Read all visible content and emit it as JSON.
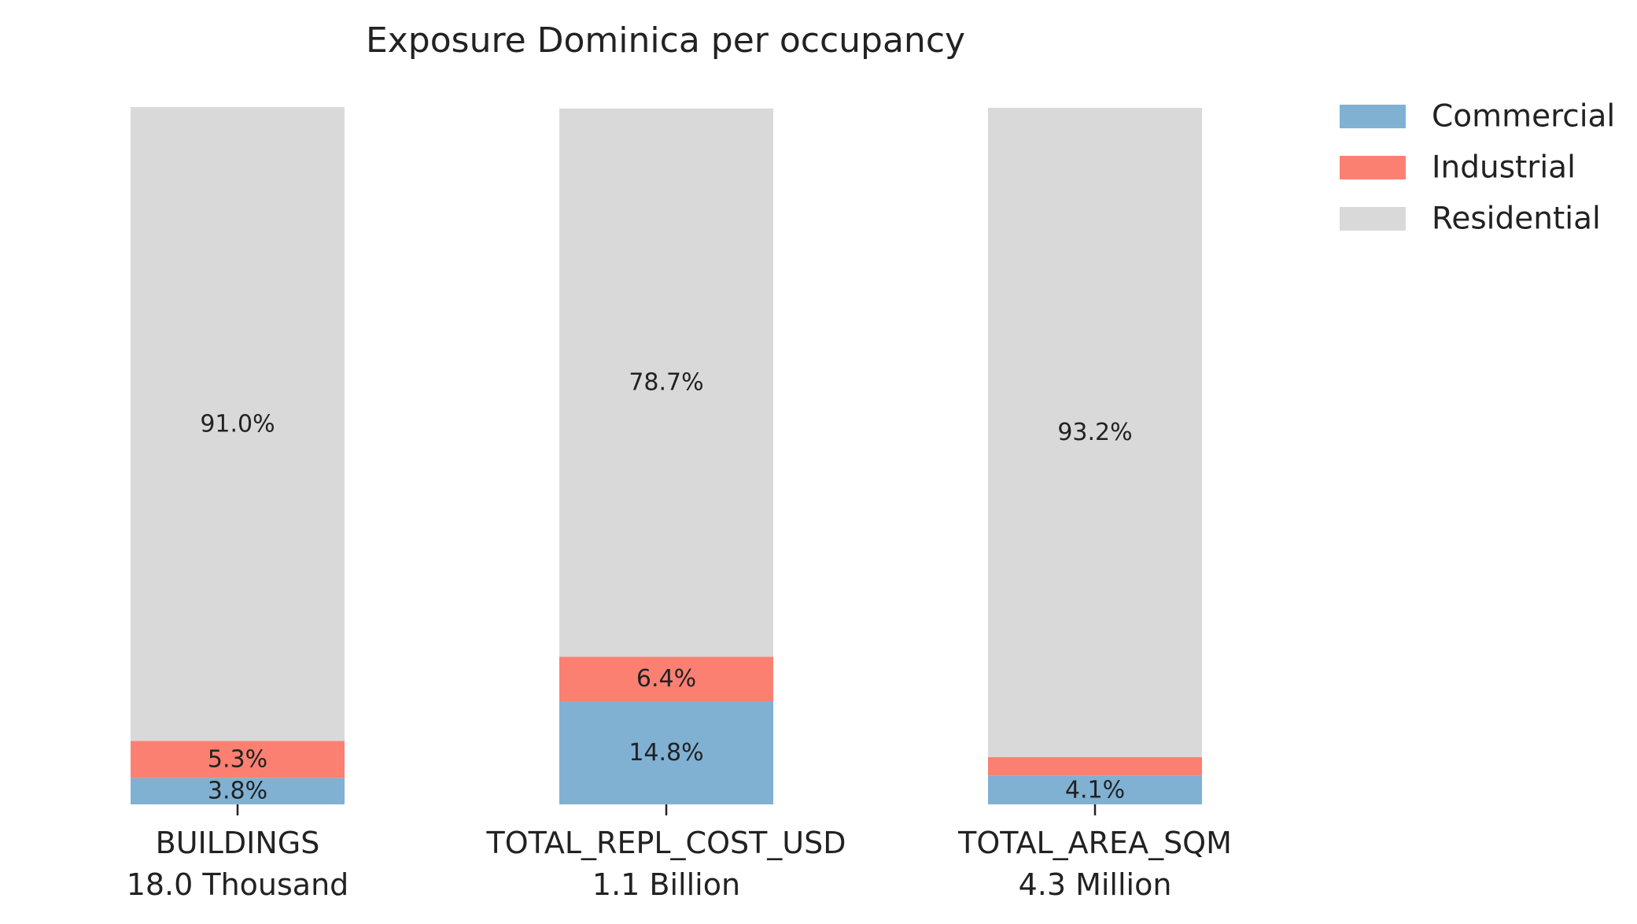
{
  "chart_data": {
    "type": "bar",
    "stacked": true,
    "title": "Exposure Dominica per occupancy",
    "xlabel": "",
    "ylabel": "",
    "ylim": [
      0,
      100
    ],
    "grid": false,
    "legend_position": "top-right",
    "categories": [
      {
        "name": "BUILDINGS",
        "total": "18.0 Thousand"
      },
      {
        "name": "TOTAL_REPL_COST_USD",
        "total": "1.1 Billion"
      },
      {
        "name": "TOTAL_AREA_SQM",
        "total": "4.3 Million"
      }
    ],
    "series": [
      {
        "name": "Commercial",
        "color": "#80b1d3",
        "values": [
          3.8,
          14.8,
          4.1
        ],
        "labels": [
          "3.8%",
          "14.8%",
          "4.1%"
        ]
      },
      {
        "name": "Industrial",
        "color": "#fb8072",
        "values": [
          5.3,
          6.4,
          2.7
        ],
        "labels": [
          "5.3%",
          "6.4%",
          ""
        ]
      },
      {
        "name": "Residential",
        "color": "#d9d9d9",
        "values": [
          91.0,
          78.7,
          93.2
        ],
        "labels": [
          "91.0%",
          "78.7%",
          "93.2%"
        ]
      }
    ]
  }
}
